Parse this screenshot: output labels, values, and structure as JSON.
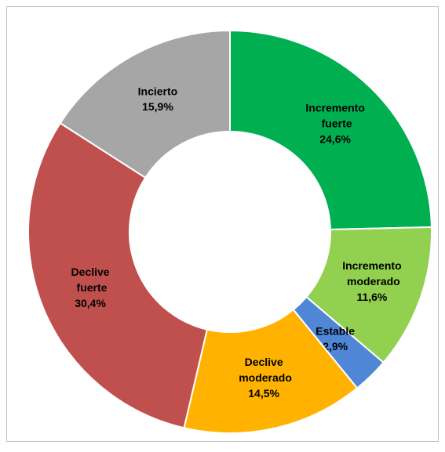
{
  "chart_data": {
    "type": "pie",
    "categories": [
      "Incremento fuerte",
      "Incremento moderado",
      "Estable",
      "Declive moderado",
      "Declive fuerte",
      "Incierto"
    ],
    "values": [
      24.6,
      11.6,
      2.9,
      14.5,
      30.4,
      15.9
    ],
    "value_labels": [
      "24,6%",
      "11,6%",
      "2,9%",
      "14,5%",
      "30,4%",
      "15,9%"
    ],
    "colors": [
      "#00b050",
      "#92d050",
      "#4f87d6",
      "#ffb300",
      "#c0504d",
      "#a6a6a6"
    ]
  }
}
